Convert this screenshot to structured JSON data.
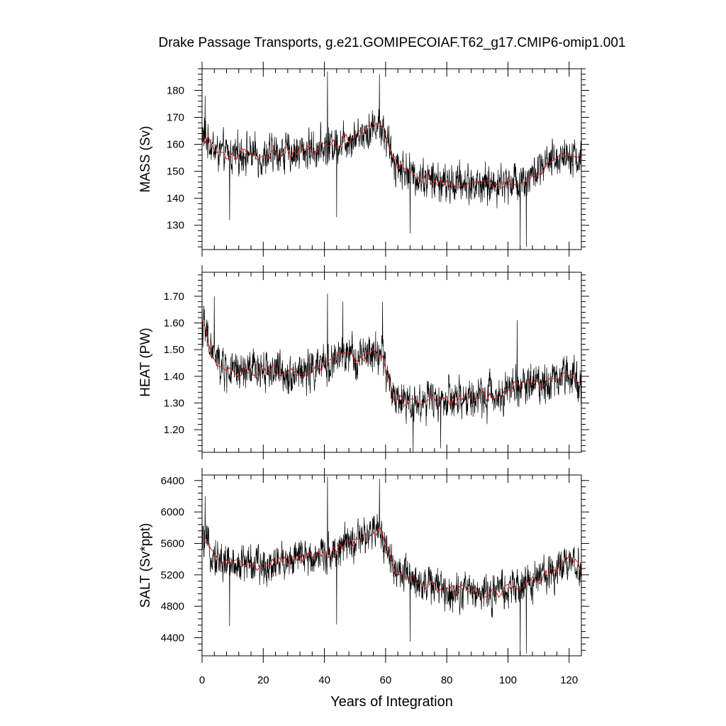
{
  "title": "Drake Passage Transports, g.e21.GOMIPECOIAF.T62_g17.CMIP6-omip1.001",
  "chart_data": [
    {
      "type": "line",
      "ylabel": "MASS (Sv)",
      "xlabel": "",
      "xlim": [
        0,
        124
      ],
      "ylim": [
        121,
        188
      ],
      "yticks": [
        130,
        140,
        150,
        160,
        170,
        180
      ],
      "ytick_labels": [
        "130",
        "140",
        "150",
        "160",
        "170",
        "180"
      ],
      "xticks": [
        0,
        20,
        40,
        60,
        80,
        100,
        120
      ],
      "series": [
        {
          "kind": "monthly",
          "color": "#000000",
          "baseline_by_year": [
            [
              0,
              164
            ],
            [
              5,
              157
            ],
            [
              10,
              156
            ],
            [
              15,
              157
            ],
            [
              20,
              155
            ],
            [
              25,
              157
            ],
            [
              30,
              157
            ],
            [
              35,
              158
            ],
            [
              40,
              159
            ],
            [
              45,
              161
            ],
            [
              50,
              163
            ],
            [
              55,
              166
            ],
            [
              58,
              168
            ],
            [
              60,
              163
            ],
            [
              62,
              155
            ],
            [
              65,
              151
            ],
            [
              70,
              148
            ],
            [
              75,
              147
            ],
            [
              80,
              145
            ],
            [
              85,
              146
            ],
            [
              90,
              145
            ],
            [
              95,
              145
            ],
            [
              100,
              146
            ],
            [
              105,
              147
            ],
            [
              110,
              150
            ],
            [
              115,
              154
            ],
            [
              120,
              157
            ],
            [
              124,
              154
            ]
          ],
          "noise_amplitude": 8,
          "spikes": [
            [
              1,
              178
            ],
            [
              9,
              132
            ],
            [
              41,
              187
            ],
            [
              44,
              133
            ],
            [
              58,
              186
            ],
            [
              68,
              127
            ],
            [
              104,
              122
            ],
            [
              106,
              122
            ]
          ]
        },
        {
          "kind": "annual_mean",
          "color": "#cc2222",
          "baseline_by_year": [
            [
              0,
              164
            ],
            [
              5,
              157
            ],
            [
              10,
              156
            ],
            [
              15,
              157
            ],
            [
              20,
              155
            ],
            [
              25,
              157
            ],
            [
              30,
              157
            ],
            [
              35,
              158
            ],
            [
              40,
              159
            ],
            [
              45,
              161
            ],
            [
              50,
              163
            ],
            [
              55,
              166
            ],
            [
              58,
              168
            ],
            [
              60,
              163
            ],
            [
              62,
              155
            ],
            [
              65,
              151
            ],
            [
              70,
              148
            ],
            [
              75,
              147
            ],
            [
              80,
              145
            ],
            [
              85,
              146
            ],
            [
              90,
              145
            ],
            [
              95,
              145
            ],
            [
              100,
              146
            ],
            [
              105,
              147
            ],
            [
              110,
              150
            ],
            [
              115,
              154
            ],
            [
              120,
              157
            ],
            [
              124,
              154
            ]
          ],
          "noise_amplitude": 2
        }
      ]
    },
    {
      "type": "line",
      "ylabel": "HEAT (PW)",
      "xlabel": "",
      "xlim": [
        0,
        124
      ],
      "ylim": [
        1.115,
        1.79
      ],
      "yticks": [
        1.2,
        1.3,
        1.4,
        1.5,
        1.6,
        1.7
      ],
      "ytick_labels": [
        "1.20",
        "1.30",
        "1.40",
        "1.50",
        "1.60",
        "1.70"
      ],
      "xticks": [
        0,
        20,
        40,
        60,
        80,
        100,
        120
      ],
      "series": [
        {
          "kind": "monthly",
          "color": "#000000",
          "baseline_by_year": [
            [
              0,
              1.6
            ],
            [
              3,
              1.5
            ],
            [
              6,
              1.44
            ],
            [
              10,
              1.41
            ],
            [
              15,
              1.42
            ],
            [
              20,
              1.43
            ],
            [
              25,
              1.42
            ],
            [
              30,
              1.41
            ],
            [
              35,
              1.42
            ],
            [
              40,
              1.44
            ],
            [
              45,
              1.47
            ],
            [
              50,
              1.47
            ],
            [
              55,
              1.48
            ],
            [
              59,
              1.49
            ],
            [
              61,
              1.38
            ],
            [
              63,
              1.32
            ],
            [
              70,
              1.3
            ],
            [
              75,
              1.31
            ],
            [
              80,
              1.31
            ],
            [
              85,
              1.31
            ],
            [
              90,
              1.32
            ],
            [
              95,
              1.33
            ],
            [
              100,
              1.35
            ],
            [
              105,
              1.37
            ],
            [
              110,
              1.38
            ],
            [
              115,
              1.39
            ],
            [
              120,
              1.42
            ],
            [
              124,
              1.38
            ]
          ],
          "noise_amplitude": 0.085,
          "spikes": [
            [
              0,
              1.77
            ],
            [
              4,
              1.7
            ],
            [
              41,
              1.71
            ],
            [
              46,
              1.68
            ],
            [
              59,
              1.68
            ],
            [
              69,
              1.11
            ],
            [
              78,
              1.13
            ],
            [
              103,
              1.61
            ]
          ]
        },
        {
          "kind": "annual_mean",
          "color": "#cc2222",
          "baseline_by_year": [
            [
              0,
              1.6
            ],
            [
              3,
              1.5
            ],
            [
              6,
              1.44
            ],
            [
              10,
              1.41
            ],
            [
              15,
              1.42
            ],
            [
              20,
              1.43
            ],
            [
              25,
              1.42
            ],
            [
              30,
              1.41
            ],
            [
              35,
              1.42
            ],
            [
              40,
              1.44
            ],
            [
              45,
              1.47
            ],
            [
              50,
              1.47
            ],
            [
              55,
              1.48
            ],
            [
              59,
              1.49
            ],
            [
              61,
              1.38
            ],
            [
              63,
              1.32
            ],
            [
              70,
              1.3
            ],
            [
              75,
              1.31
            ],
            [
              80,
              1.31
            ],
            [
              85,
              1.31
            ],
            [
              90,
              1.32
            ],
            [
              95,
              1.33
            ],
            [
              100,
              1.35
            ],
            [
              105,
              1.37
            ],
            [
              110,
              1.38
            ],
            [
              115,
              1.39
            ],
            [
              120,
              1.42
            ],
            [
              124,
              1.38
            ]
          ],
          "noise_amplitude": 0.022
        }
      ]
    },
    {
      "type": "line",
      "ylabel": "SALT (Sv*ppt)",
      "xlabel": "Years of Integration",
      "xlim": [
        0,
        124
      ],
      "ylim": [
        4170,
        6470
      ],
      "yticks": [
        4400,
        4800,
        5200,
        5600,
        6000,
        6400
      ],
      "ytick_labels": [
        "4400",
        "4800",
        "5200",
        "5600",
        "6000",
        "6400"
      ],
      "xticks": [
        0,
        20,
        40,
        60,
        80,
        100,
        120
      ],
      "xtick_labels": [
        "0",
        "20",
        "40",
        "60",
        "80",
        "100",
        "120"
      ],
      "series": [
        {
          "kind": "monthly",
          "color": "#000000",
          "baseline_by_year": [
            [
              0,
              5650
            ],
            [
              5,
              5400
            ],
            [
              10,
              5330
            ],
            [
              15,
              5360
            ],
            [
              20,
              5300
            ],
            [
              25,
              5380
            ],
            [
              30,
              5400
            ],
            [
              35,
              5430
            ],
            [
              40,
              5470
            ],
            [
              45,
              5540
            ],
            [
              50,
              5620
            ],
            [
              55,
              5700
            ],
            [
              58,
              5780
            ],
            [
              60,
              5600
            ],
            [
              62,
              5360
            ],
            [
              65,
              5200
            ],
            [
              70,
              5130
            ],
            [
              75,
              5070
            ],
            [
              80,
              4990
            ],
            [
              85,
              5020
            ],
            [
              90,
              4980
            ],
            [
              95,
              4960
            ],
            [
              100,
              5010
            ],
            [
              105,
              5050
            ],
            [
              110,
              5150
            ],
            [
              115,
              5270
            ],
            [
              120,
              5380
            ],
            [
              124,
              5280
            ]
          ],
          "noise_amplitude": 270,
          "spikes": [
            [
              1,
              6200
            ],
            [
              9,
              4550
            ],
            [
              41,
              6450
            ],
            [
              44,
              4570
            ],
            [
              58,
              6420
            ],
            [
              68,
              4350
            ],
            [
              104,
              4180
            ],
            [
              106,
              4200
            ]
          ]
        },
        {
          "kind": "annual_mean",
          "color": "#cc2222",
          "baseline_by_year": [
            [
              0,
              5650
            ],
            [
              5,
              5400
            ],
            [
              10,
              5330
            ],
            [
              15,
              5360
            ],
            [
              20,
              5300
            ],
            [
              25,
              5380
            ],
            [
              30,
              5400
            ],
            [
              35,
              5430
            ],
            [
              40,
              5470
            ],
            [
              45,
              5540
            ],
            [
              50,
              5620
            ],
            [
              55,
              5700
            ],
            [
              58,
              5780
            ],
            [
              60,
              5600
            ],
            [
              62,
              5360
            ],
            [
              65,
              5200
            ],
            [
              70,
              5130
            ],
            [
              75,
              5070
            ],
            [
              80,
              4990
            ],
            [
              85,
              5020
            ],
            [
              90,
              4980
            ],
            [
              95,
              4960
            ],
            [
              100,
              5010
            ],
            [
              105,
              5050
            ],
            [
              110,
              5150
            ],
            [
              115,
              5270
            ],
            [
              120,
              5380
            ],
            [
              124,
              5280
            ]
          ],
          "noise_amplitude": 70
        }
      ]
    }
  ]
}
